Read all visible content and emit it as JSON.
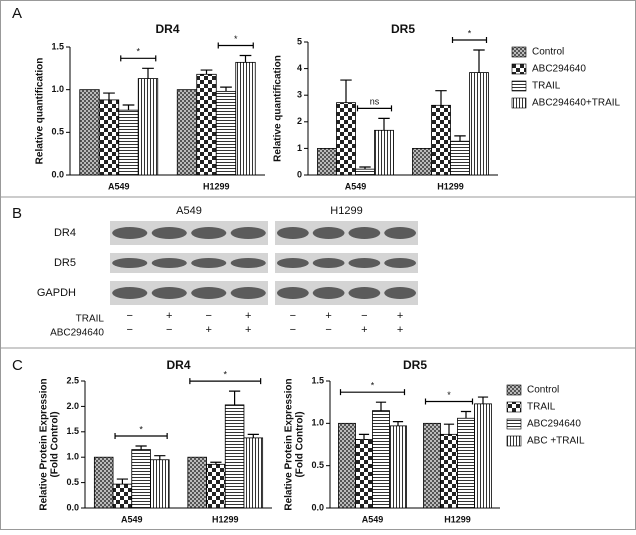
{
  "panel_labels": [
    "A",
    "B",
    "C"
  ],
  "chart_data": [
    {
      "type": "bar",
      "title": "DR4",
      "ylabel": "Relative quantification",
      "categories": [
        "A549",
        "H1299"
      ],
      "ylim": [
        0,
        1.5
      ],
      "yticks": [
        {
          "value": 0,
          "label": "0.0"
        },
        0.5,
        {
          "value": 1,
          "label": "1.0"
        },
        1.5
      ],
      "series": [
        {
          "pattern": "checker-fine",
          "values": [
            1.0,
            1.0
          ],
          "errors": [
            0,
            0
          ]
        },
        {
          "pattern": "checker-coarse",
          "values": [
            0.88,
            1.18
          ],
          "errors": [
            0.08,
            0.05
          ]
        },
        {
          "pattern": "horizontal",
          "values": [
            0.76,
            0.98
          ],
          "errors": [
            0.06,
            0.05
          ]
        },
        {
          "pattern": "vertical",
          "values": [
            1.13,
            1.32
          ],
          "errors": [
            0.12,
            0.08
          ]
        }
      ],
      "annotations": [
        {
          "text": "*",
          "group": 0,
          "from": 2,
          "to": 3
        },
        {
          "text": "*",
          "group": 1,
          "from": 2,
          "to": 3
        }
      ]
    },
    {
      "type": "bar",
      "title": "DR5",
      "ylabel": "Relative quantification",
      "categories": [
        "A549",
        "H1299"
      ],
      "ylim": [
        0,
        5
      ],
      "yticks": [
        0,
        1,
        2,
        3,
        4,
        5
      ],
      "legend": "right",
      "series": [
        {
          "name": "Control",
          "pattern": "checker-fine",
          "values": [
            1.0,
            1.0
          ],
          "errors": [
            0,
            0
          ]
        },
        {
          "name": "ABC294640",
          "pattern": "checker-coarse",
          "values": [
            2.72,
            2.62
          ],
          "errors": [
            0.85,
            0.55
          ]
        },
        {
          "name": "TRAIL",
          "pattern": "horizontal",
          "values": [
            0.22,
            1.27
          ],
          "errors": [
            0.08,
            0.2
          ]
        },
        {
          "name": "ABC294640+TRAIL",
          "pattern": "vertical",
          "values": [
            1.68,
            3.85
          ],
          "errors": [
            0.45,
            0.85
          ]
        }
      ],
      "annotations": [
        {
          "text": "ns",
          "group": 0,
          "from": 2,
          "to": 3
        },
        {
          "text": "*",
          "group": 1,
          "from": 2,
          "to": 3
        }
      ]
    },
    {
      "type": "bar",
      "title": "DR4",
      "ylabel": [
        "Relative Protein Expression",
        "(Fold Control)"
      ],
      "categories": [
        "A549",
        "H1299"
      ],
      "ylim": [
        0,
        2.5
      ],
      "yticks": [
        {
          "value": 0,
          "label": "0.0"
        },
        0.5,
        {
          "value": 1,
          "label": "1.0"
        },
        1.5,
        {
          "value": 2,
          "label": "2.0"
        },
        2.5
      ],
      "series": [
        {
          "pattern": "checker-fine",
          "values": [
            1.0,
            1.0
          ],
          "errors": [
            0,
            0
          ]
        },
        {
          "pattern": "checker-coarse",
          "values": [
            0.47,
            0.86
          ],
          "errors": [
            0.1,
            0.04
          ]
        },
        {
          "pattern": "horizontal",
          "values": [
            1.15,
            2.03
          ],
          "errors": [
            0.07,
            0.27
          ]
        },
        {
          "pattern": "vertical",
          "values": [
            0.95,
            1.38
          ],
          "errors": [
            0.08,
            0.07
          ]
        }
      ],
      "annotations": [
        {
          "text": "*",
          "group": 0,
          "from": 1,
          "to": 3
        },
        {
          "text": "*",
          "group": 1,
          "from": 0,
          "to": 3
        }
      ]
    },
    {
      "type": "bar",
      "title": "DR5",
      "ylabel": [
        "Relative Protein Expression",
        "(Fold Control)"
      ],
      "categories": [
        "A549",
        "H1299"
      ],
      "ylim": [
        0,
        1.5
      ],
      "yticks": [
        {
          "value": 0,
          "label": "0.0"
        },
        0.5,
        {
          "value": 1,
          "label": "1.0"
        },
        1.5
      ],
      "legend": "right",
      "series": [
        {
          "name": "Control",
          "pattern": "checker-fine",
          "values": [
            1.0,
            1.0
          ],
          "errors": [
            0,
            0
          ]
        },
        {
          "name": "TRAIL",
          "pattern": "checker-coarse",
          "values": [
            0.81,
            0.87
          ],
          "errors": [
            0.06,
            0.12
          ]
        },
        {
          "name": "ABC294640",
          "pattern": "horizontal",
          "values": [
            1.15,
            1.06
          ],
          "errors": [
            0.1,
            0.08
          ]
        },
        {
          "name": "ABC +TRAIL",
          "pattern": "vertical",
          "values": [
            0.97,
            1.23
          ],
          "errors": [
            0.05,
            0.08
          ]
        }
      ],
      "annotations": [
        {
          "text": "*",
          "group": 0,
          "from": 0,
          "to": 3
        },
        {
          "text": "*",
          "group": 1,
          "from": 0,
          "to": 2
        }
      ]
    }
  ],
  "blot": {
    "cells": [
      "A549",
      "H1299"
    ],
    "rows": [
      "DR4",
      "DR5",
      "GAPDH"
    ],
    "treatments": [
      {
        "name": "TRAIL",
        "signs": [
          "−",
          "+",
          "−",
          "+",
          "−",
          "+",
          "−",
          "+"
        ]
      },
      {
        "name": "ABC294640",
        "signs": [
          "−",
          "−",
          "+",
          "+",
          "−",
          "−",
          "+",
          "+"
        ]
      }
    ]
  }
}
